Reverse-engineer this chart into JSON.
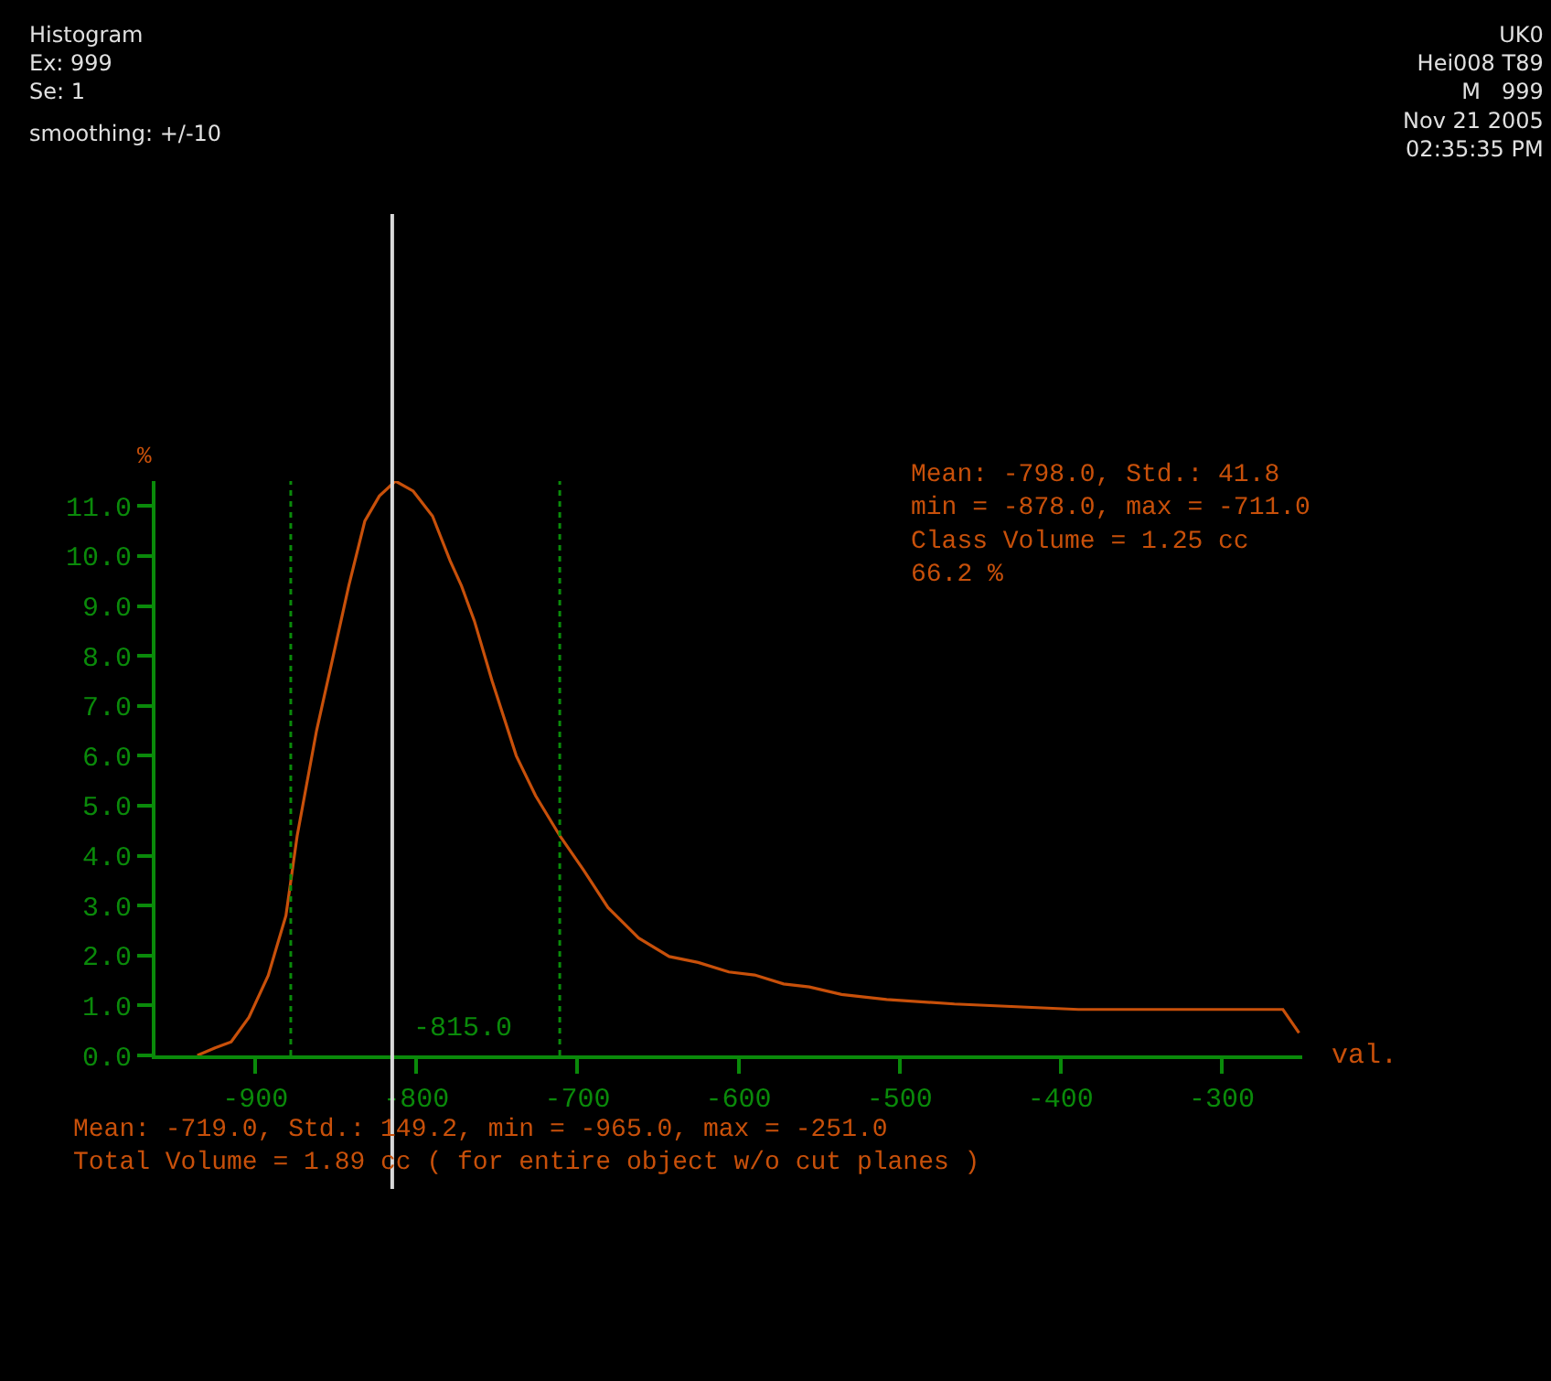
{
  "chart_data": {
    "type": "line",
    "xlabel": "val.",
    "ylabel": "%",
    "x": [
      -936,
      -925,
      -915,
      -904,
      -892,
      -881,
      -874,
      -862,
      -853,
      -842,
      -832,
      -823,
      -813,
      -802,
      -790,
      -779,
      -772,
      -764,
      -753,
      -738,
      -726,
      -711,
      -696,
      -681,
      -662,
      -643,
      -625,
      -606,
      -590,
      -572,
      -556,
      -536,
      -508,
      -466,
      -389,
      -262,
      -252
    ],
    "series": [
      {
        "color": "#c8500a",
        "values": [
          0.0,
          0.15,
          0.27,
          0.76,
          1.6,
          2.8,
          4.4,
          6.5,
          7.8,
          9.4,
          10.7,
          11.2,
          11.5,
          11.3,
          10.8,
          9.9,
          9.4,
          8.7,
          7.5,
          6.0,
          5.2,
          4.4,
          3.7,
          2.96,
          2.35,
          1.98,
          1.86,
          1.67,
          1.61,
          1.43,
          1.37,
          1.22,
          1.12,
          1.03,
          0.92,
          0.92,
          0.45
        ]
      }
    ],
    "xlim": [
      -962,
      -250
    ],
    "ylim": [
      0,
      11.5
    ],
    "xticks": [
      -900,
      -800,
      -700,
      -600,
      -500,
      -400,
      -300
    ],
    "yticks": [
      {
        "value": 0,
        "label": "0.0"
      },
      {
        "value": 1,
        "label": "1.0"
      },
      {
        "value": 2,
        "label": "2.0"
      },
      {
        "value": 3,
        "label": "3.0"
      },
      {
        "value": 4,
        "label": "4.0"
      },
      {
        "value": 5,
        "label": "5.0"
      },
      {
        "value": 6,
        "label": "6.0"
      },
      {
        "value": 7,
        "label": "7.0"
      },
      {
        "value": 8,
        "label": "8.0"
      },
      {
        "value": 9,
        "label": "9.0"
      },
      {
        "value": 10,
        "label": "10.0"
      },
      {
        "value": 11,
        "label": "11.0"
      }
    ],
    "ref_lines": [
      {
        "axis": "x",
        "value": -815,
        "label": "-815.0",
        "color": "#d8d8d8",
        "line_style": "solid"
      },
      {
        "axis": "x",
        "value": -878,
        "color": "#0a8a0a",
        "line_style": "dotted"
      },
      {
        "axis": "x",
        "value": -711,
        "color": "#0a8a0a",
        "line_style": "dotted"
      }
    ],
    "grid": false,
    "marker": "none",
    "line_style": "solid",
    "annotations": [
      "Histogram\nEx: 999\nSe: 1",
      "smoothing: +/-10",
      "UK0\nHei008 T89\nM   999\nNov 21 2005\n02:35:35 PM",
      "Mean: -798.0, Std.: 41.8\nmin = -878.0, max = -711.0\nClass Volume = 1.25 cc\n66.2 %",
      "Mean: -719.0, Std.: 149.2, min = -965.0, max = -251.0\nTotal Volume = 1.89 cc ( for entire object w/o cut planes )"
    ]
  }
}
